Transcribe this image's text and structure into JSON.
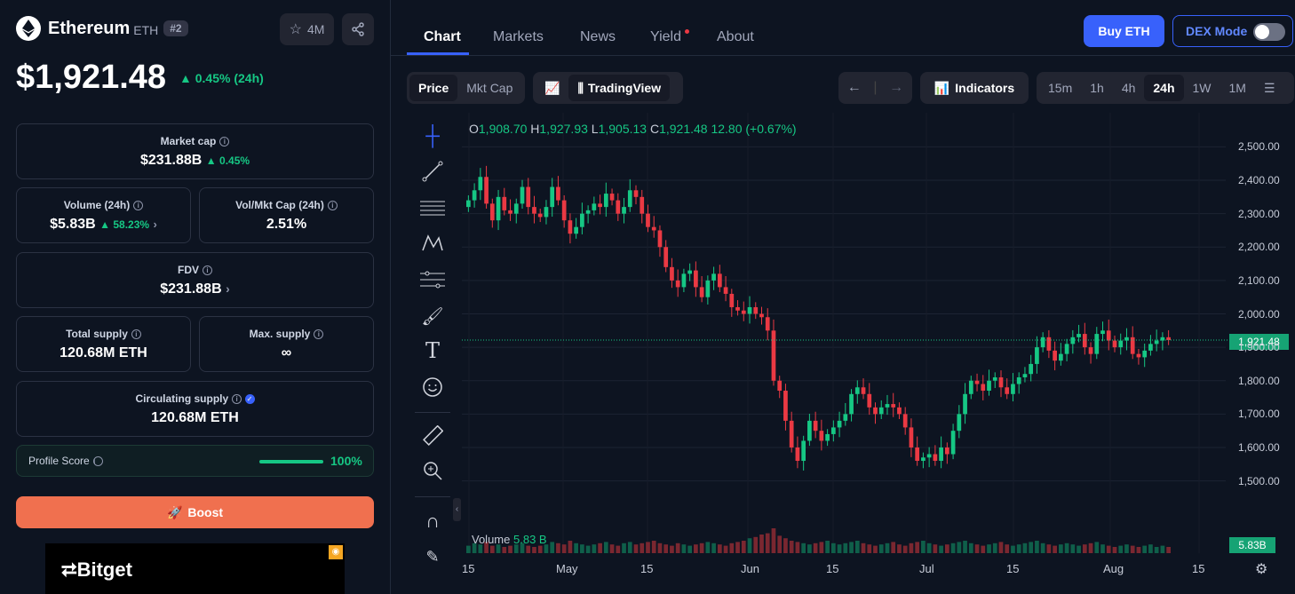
{
  "coin": {
    "name": "Ethereum",
    "symbol": "ETH",
    "rank": "#2",
    "watchlist_count": "4M",
    "price": "$1,921.48",
    "change": "0.45% (24h)"
  },
  "stats": {
    "market_cap_label": "Market cap",
    "market_cap": "$231.88B",
    "market_cap_change": "0.45%",
    "volume_label": "Volume (24h)",
    "volume": "$5.83B",
    "volume_change": "58.23%",
    "volmkt_label": "Vol/Mkt Cap (24h)",
    "volmkt": "2.51%",
    "fdv_label": "FDV",
    "fdv": "$231.88B",
    "total_supply_label": "Total supply",
    "total_supply": "120.68M ETH",
    "max_supply_label": "Max. supply",
    "max_supply": "∞",
    "circ_supply_label": "Circulating supply",
    "circ_supply": "120.68M ETH"
  },
  "profile": {
    "label": "Profile Score",
    "value": "100%",
    "score": 1.0
  },
  "boost_label": "Boost",
  "ad_brand": "Bitget",
  "tabs": [
    "Chart",
    "Markets",
    "News",
    "Yield",
    "About"
  ],
  "buy_label": "Buy ETH",
  "dex_label": "DEX Mode",
  "toolbar": {
    "price": "Price",
    "mktcap": "Mkt Cap",
    "tradingview": "TradingView",
    "indicators": "Indicators",
    "intervals": [
      "15m",
      "1h",
      "4h",
      "24h",
      "1W",
      "1M"
    ],
    "active_interval": "24h"
  },
  "ohlc": {
    "o": "1,908.70",
    "h": "1,927.93",
    "l": "1,905.13",
    "c": "1,921.48",
    "chg": "12.80 (+0.67%)"
  },
  "volume_label": "Volume",
  "volume_value": "5.83 B",
  "volume_tag": "5.83B",
  "current_price_tag": "1,921.48",
  "colors": {
    "up": "#16c784",
    "down": "#ea3943",
    "accent": "#3861fb"
  },
  "chart_data": {
    "type": "candlestick",
    "y_ticks": [
      "2,500.00",
      "2,400.00",
      "2,300.00",
      "2,200.00",
      "2,100.00",
      "2,000.00",
      "1,900.00",
      "1,800.00",
      "1,700.00",
      "1,600.00",
      "1,500.00"
    ],
    "ylim": [
      1475,
      2525
    ],
    "x_ticks": [
      "15",
      "May",
      "15",
      "Jun",
      "15",
      "Jul",
      "15",
      "Aug",
      "15"
    ],
    "closes": [
      2340,
      2370,
      2410,
      2330,
      2280,
      2350,
      2310,
      2300,
      2330,
      2380,
      2320,
      2300,
      2290,
      2320,
      2380,
      2340,
      2280,
      2240,
      2260,
      2300,
      2310,
      2330,
      2320,
      2360,
      2340,
      2300,
      2320,
      2370,
      2350,
      2300,
      2260,
      2250,
      2200,
      2140,
      2100,
      2080,
      2120,
      2130,
      2080,
      2050,
      2100,
      2120,
      2080,
      2060,
      2020,
      2010,
      2000,
      2020,
      2000,
      1990,
      1950,
      1800,
      1770,
      1680,
      1600,
      1560,
      1620,
      1680,
      1650,
      1620,
      1640,
      1660,
      1680,
      1700,
      1760,
      1780,
      1760,
      1720,
      1700,
      1720,
      1730,
      1720,
      1700,
      1660,
      1600,
      1560,
      1570,
      1580,
      1560,
      1600,
      1580,
      1650,
      1700,
      1760,
      1800,
      1790,
      1770,
      1800,
      1810,
      1780,
      1760,
      1790,
      1810,
      1820,
      1850,
      1900,
      1930,
      1890,
      1860,
      1880,
      1910,
      1930,
      1940,
      1900,
      1880,
      1940,
      1950,
      1920,
      1900,
      1920,
      1930,
      1880,
      1870,
      1890,
      1910,
      1920,
      1930,
      1921.48
    ],
    "volumes": [
      6,
      8,
      7,
      9,
      6,
      7,
      5,
      6,
      7,
      8,
      6,
      5,
      6,
      7,
      9,
      8,
      7,
      10,
      8,
      7,
      6,
      7,
      8,
      9,
      7,
      6,
      8,
      9,
      7,
      8,
      9,
      10,
      8,
      7,
      6,
      8,
      7,
      6,
      7,
      8,
      9,
      8,
      7,
      6,
      8,
      9,
      10,
      12,
      13,
      15,
      16,
      20,
      14,
      12,
      10,
      9,
      8,
      7,
      8,
      9,
      10,
      8,
      7,
      8,
      9,
      10,
      8,
      7,
      6,
      7,
      8,
      9,
      7,
      6,
      8,
      9,
      10,
      8,
      7,
      6,
      7,
      8,
      9,
      10,
      8,
      7,
      6,
      7,
      8,
      9,
      7,
      6,
      7,
      8,
      9,
      10,
      8,
      7,
      6,
      7,
      8,
      7,
      6,
      7,
      8,
      9,
      7,
      6,
      5,
      6,
      7,
      6,
      5,
      6,
      7,
      5,
      6,
      5
    ]
  }
}
